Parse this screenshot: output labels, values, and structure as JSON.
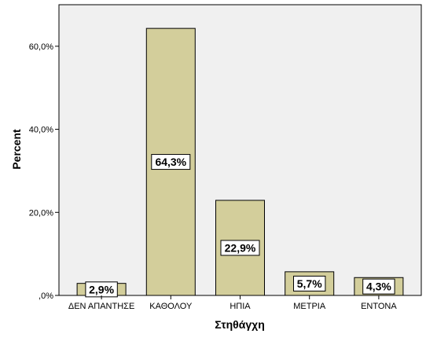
{
  "chart_data": {
    "type": "bar",
    "categories": [
      "ΔΕΝ ΑΠΑΝΤΗΣΕ",
      "ΚΑΘΟΛΟΥ",
      "ΗΠΙΑ",
      "ΜΕΤΡΙΑ",
      "ΕΝΤΟΝΑ"
    ],
    "values": [
      2.9,
      64.3,
      22.9,
      5.7,
      4.3
    ],
    "data_labels": [
      "2,9%",
      "64,3%",
      "22,9%",
      "5,7%",
      "4,3%"
    ],
    "xlabel": "Στηθάγχη",
    "ylabel": "Percent",
    "ylim": [
      0,
      70
    ],
    "yticks": [
      0,
      20,
      40,
      60
    ],
    "ytick_labels": [
      ",0%",
      "20,0%",
      "40,0%",
      "60,0%"
    ],
    "grid": false,
    "colors": {
      "bar_fill": "#d3ce9b",
      "bar_stroke": "#000000",
      "plot_bg": "#f0f0f0",
      "page_bg": "#ffffff"
    }
  }
}
